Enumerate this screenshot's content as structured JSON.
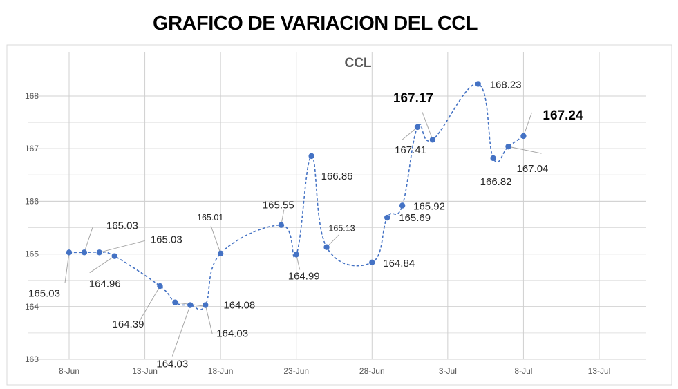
{
  "page_title": "GRAFICO DE VARIACION DEL CCL",
  "chart_data": {
    "type": "line",
    "title": "CCL",
    "xlabel": "",
    "ylabel": "",
    "ylim": [
      163,
      168
    ],
    "yticks": [
      163,
      164,
      165,
      166,
      167,
      168
    ],
    "xticks": [
      "8-Jun",
      "13-Jun",
      "18-Jun",
      "23-Jun",
      "28-Jun",
      "3-Jul",
      "8-Jul",
      "13-Jul"
    ],
    "xlim_days": [
      0,
      35
    ],
    "grid": true,
    "line_style": "dashed",
    "color": "#4472C4",
    "points": [
      {
        "x": "8-Jun",
        "day": 0,
        "y": 165.03,
        "label": "165.03"
      },
      {
        "x": "9-Jun",
        "day": 1,
        "y": 165.03,
        "label": "165.03"
      },
      {
        "x": "10-Jun",
        "day": 2,
        "y": 165.03,
        "label": "165.03"
      },
      {
        "x": "11-Jun",
        "day": 3,
        "y": 164.96,
        "label": "164.96"
      },
      {
        "x": "14-Jun",
        "day": 6,
        "y": 164.39,
        "label": "164.39"
      },
      {
        "x": "15-Jun",
        "day": 7,
        "y": 164.08,
        "label": "164.08"
      },
      {
        "x": "16-Jun",
        "day": 8,
        "y": 164.03,
        "label": "164.03"
      },
      {
        "x": "17-Jun",
        "day": 9,
        "y": 164.03,
        "label": "164.03"
      },
      {
        "x": "18-Jun",
        "day": 10,
        "y": 165.01,
        "label": "165.01"
      },
      {
        "x": "22-Jun",
        "day": 14,
        "y": 165.55,
        "label": "165.55"
      },
      {
        "x": "23-Jun",
        "day": 15,
        "y": 164.99,
        "label": "164.99"
      },
      {
        "x": "24-Jun",
        "day": 16,
        "y": 166.86,
        "label": "166.86"
      },
      {
        "x": "25-Jun",
        "day": 17,
        "y": 165.13,
        "label": "165.13"
      },
      {
        "x": "28-Jun",
        "day": 20,
        "y": 164.84,
        "label": "164.84"
      },
      {
        "x": "29-Jun",
        "day": 21,
        "y": 165.69,
        "label": "165.69"
      },
      {
        "x": "30-Jun",
        "day": 22,
        "y": 165.92,
        "label": "165.92"
      },
      {
        "x": "1-Jul",
        "day": 23,
        "y": 167.41,
        "label": "167.41"
      },
      {
        "x": "2-Jul",
        "day": 24,
        "y": 167.17,
        "label": "167.17"
      },
      {
        "x": "5-Jul",
        "day": 27,
        "y": 168.23,
        "label": "168.23"
      },
      {
        "x": "6-Jul",
        "day": 28,
        "y": 166.82,
        "label": "166.82"
      },
      {
        "x": "7-Jul",
        "day": 29,
        "y": 167.04,
        "label": "167.04"
      },
      {
        "x": "8-Jul",
        "day": 30,
        "y": 167.24,
        "label": "167.24"
      }
    ]
  }
}
